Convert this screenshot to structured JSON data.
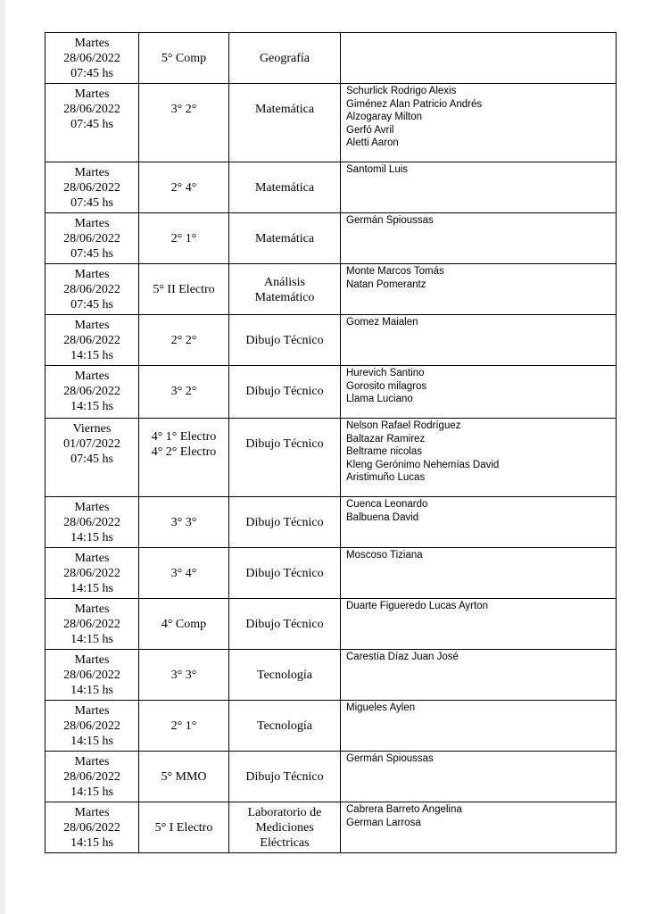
{
  "table": {
    "rows": [
      {
        "date": [
          "Martes",
          "28/06/2022",
          "07:45 hs"
        ],
        "course": [
          "5° Comp"
        ],
        "subject": [
          "Geografía"
        ],
        "students": []
      },
      {
        "date": [
          "Martes",
          "28/06/2022",
          "07:45 hs"
        ],
        "course": [
          "3° 2°"
        ],
        "subject": [
          "Matemática"
        ],
        "students": [
          "Schurlick Rodrigo Alexis",
          "Giménez Alan Patricio Andrés",
          "Alzogaray Milton",
          "Gerfó Avril",
          "Aletti Aaron"
        ]
      },
      {
        "date": [
          "Martes",
          "28/06/2022",
          "07:45 hs"
        ],
        "course": [
          "2° 4°"
        ],
        "subject": [
          "Matemática"
        ],
        "students": [
          "Santomil Luis"
        ]
      },
      {
        "date": [
          "Martes",
          "28/06/2022",
          "07:45 hs"
        ],
        "course": [
          "2° 1°"
        ],
        "subject": [
          "Matemática"
        ],
        "students": [
          "Germán Spioussas"
        ]
      },
      {
        "date": [
          "Martes",
          "28/06/2022",
          "07:45 hs"
        ],
        "course": [
          "5° II Electro"
        ],
        "subject": [
          "Análisis",
          "Matemático"
        ],
        "students": [
          "Monte Marcos Tomás",
          "Natan Pomerantz"
        ]
      },
      {
        "date": [
          "Martes",
          "28/06/2022",
          "14:15 hs"
        ],
        "course": [
          "2° 2°"
        ],
        "subject": [
          "Dibujo Técnico"
        ],
        "students": [
          "Gomez Maialen"
        ]
      },
      {
        "date": [
          "Martes",
          "28/06/2022",
          "14:15 hs"
        ],
        "course": [
          "3° 2°"
        ],
        "subject": [
          "Dibujo Técnico"
        ],
        "students": [
          "Hurevich Santino",
          "Gorosito milagros",
          "Llama Luciano"
        ]
      },
      {
        "date": [
          "Viernes",
          "01/07/2022",
          "07:45 hs"
        ],
        "course": [
          "4° 1° Electro",
          "4° 2° Electro"
        ],
        "subject": [
          "Dibujo Técnico"
        ],
        "students": [
          "Nelson Rafael Rodríguez",
          "Baltazar Ramirez",
          "Beltrame nicolas",
          "Kleng Gerónimo Nehemías David",
          "Aristimuño Lucas"
        ]
      },
      {
        "date": [
          "Martes",
          "28/06/2022",
          "14:15 hs"
        ],
        "course": [
          "3° 3°"
        ],
        "subject": [
          "Dibujo Técnico"
        ],
        "students": [
          "Cuenca Leonardo",
          "Balbuena David"
        ]
      },
      {
        "date": [
          "Martes",
          "28/06/2022",
          "14:15 hs"
        ],
        "course": [
          "3° 4°"
        ],
        "subject": [
          "Dibujo Técnico"
        ],
        "students": [
          "Moscoso Tiziana"
        ]
      },
      {
        "date": [
          "Martes",
          "28/06/2022",
          "14:15 hs"
        ],
        "course": [
          "4° Comp"
        ],
        "subject": [
          "Dibujo Técnico"
        ],
        "students": [
          "Duarte Figueredo Lucas Ayrton"
        ]
      },
      {
        "date": [
          "Martes",
          "28/06/2022",
          "14:15 hs"
        ],
        "course": [
          "3° 3°"
        ],
        "subject": [
          "Tecnología"
        ],
        "students": [
          "Carestía Díaz Juan José"
        ]
      },
      {
        "date": [
          "Martes",
          "28/06/2022",
          "14:15 hs"
        ],
        "course": [
          "2° 1°"
        ],
        "subject": [
          "Tecnología"
        ],
        "students": [
          "Migueles Aylen"
        ]
      },
      {
        "date": [
          "Martes",
          "28/06/2022",
          "14:15 hs"
        ],
        "course": [
          "5° MMO"
        ],
        "subject": [
          "Dibujo Técnico"
        ],
        "students": [
          "Germán Spioussas"
        ]
      },
      {
        "date": [
          "Martes",
          "28/06/2022",
          "14:15 hs"
        ],
        "course": [
          "5° I Electro"
        ],
        "subject": [
          "Laboratorio de",
          "Mediciones",
          "Eléctricas"
        ],
        "students": [
          "Cabrera Barreto Angelina",
          "German Larrosa"
        ]
      }
    ]
  }
}
